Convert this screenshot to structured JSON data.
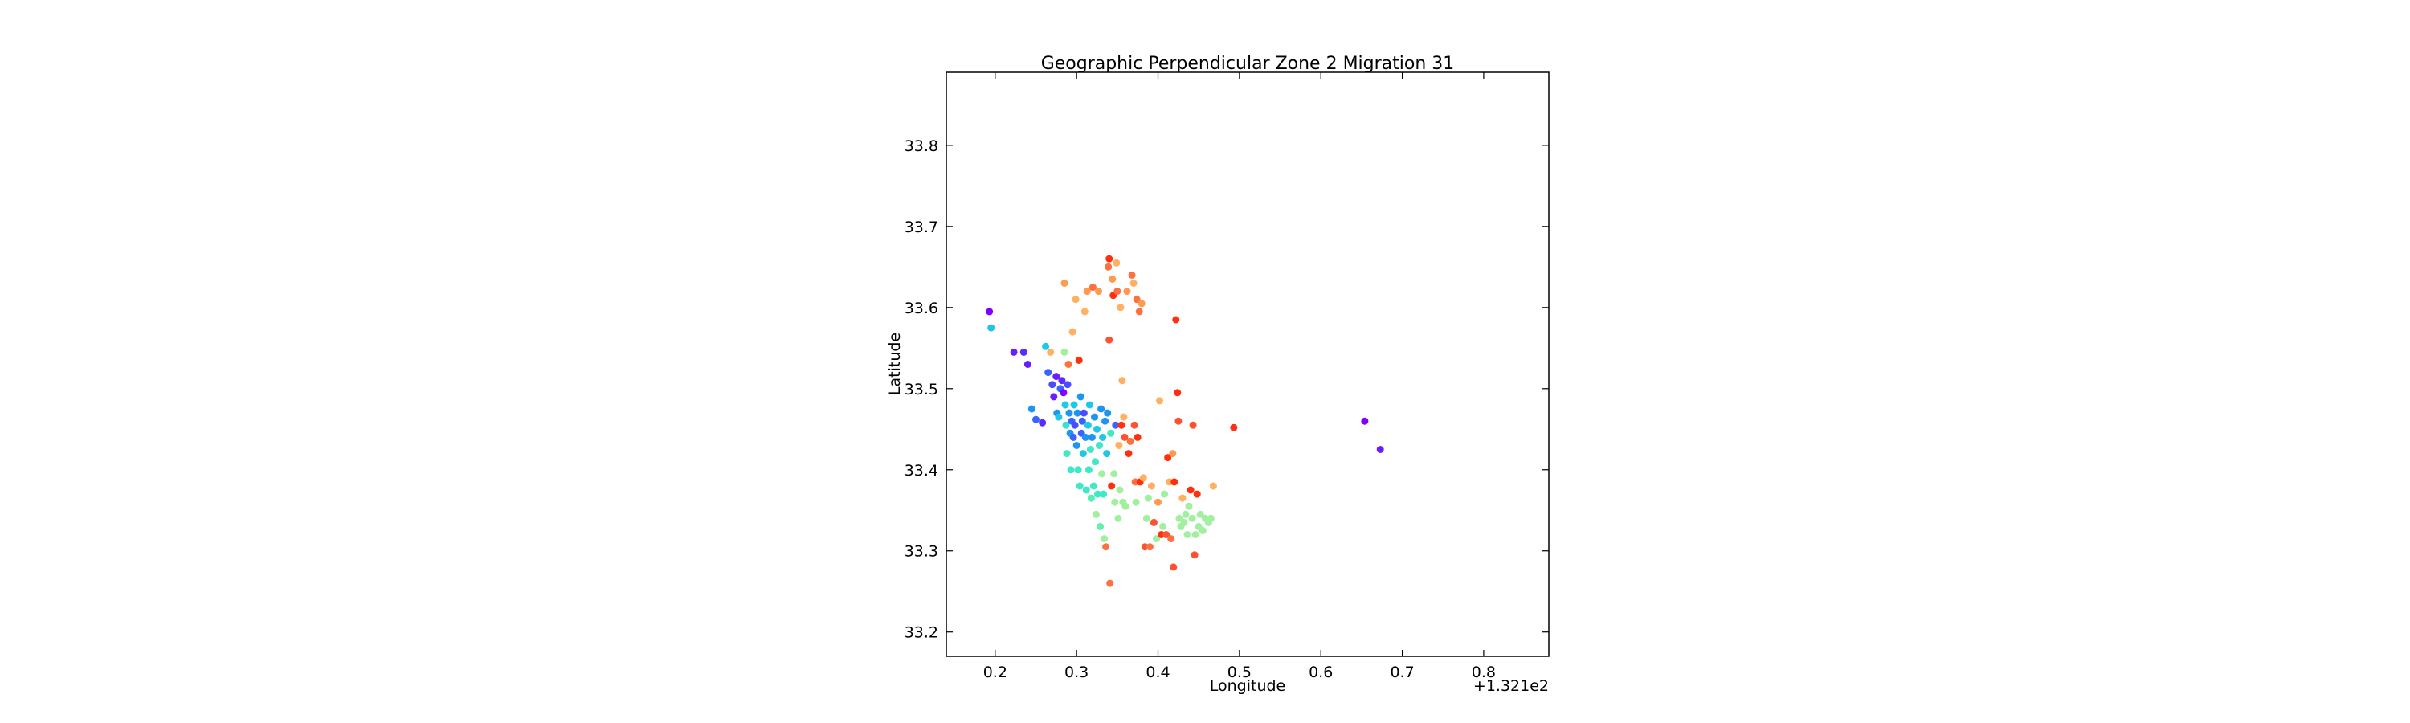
{
  "chart_data": {
    "type": "scatter",
    "title": "Geographic Perpendicular Zone 2 Migration 31",
    "xlabel": "Longitude",
    "ylabel": "Latitude",
    "x_offset_label": "+1.321e2",
    "xlim": [
      0.14,
      0.88
    ],
    "ylim": [
      33.17,
      33.89
    ],
    "xticks": [
      0.2,
      0.3,
      0.4,
      0.5,
      0.6,
      0.7,
      0.8
    ],
    "xtick_labels": [
      "0.2",
      "0.3",
      "0.4",
      "0.5",
      "0.6",
      "0.7",
      "0.8"
    ],
    "yticks": [
      33.2,
      33.3,
      33.4,
      33.5,
      33.6,
      33.7,
      33.8
    ],
    "ytick_labels": [
      "33.2",
      "33.3",
      "33.4",
      "33.5",
      "33.6",
      "33.7",
      "33.8"
    ],
    "grid": false,
    "legend": "none",
    "colormap": "rainbow",
    "points": [
      {
        "x": 0.193,
        "y": 33.595,
        "c": "#7f00ff"
      },
      {
        "x": 0.195,
        "y": 33.575,
        "c": "#1cc6e8"
      },
      {
        "x": 0.223,
        "y": 33.545,
        "c": "#6a1eff"
      },
      {
        "x": 0.235,
        "y": 33.545,
        "c": "#5a2cff"
      },
      {
        "x": 0.24,
        "y": 33.53,
        "c": "#6a1eff"
      },
      {
        "x": 0.245,
        "y": 33.475,
        "c": "#1e96f0"
      },
      {
        "x": 0.25,
        "y": 33.462,
        "c": "#3a64ff"
      },
      {
        "x": 0.258,
        "y": 33.458,
        "c": "#5a2cff"
      },
      {
        "x": 0.262,
        "y": 33.552,
        "c": "#1ec8e6"
      },
      {
        "x": 0.265,
        "y": 33.52,
        "c": "#3a64ff"
      },
      {
        "x": 0.268,
        "y": 33.545,
        "c": "#ffb060"
      },
      {
        "x": 0.27,
        "y": 33.505,
        "c": "#4a4cff"
      },
      {
        "x": 0.272,
        "y": 33.49,
        "c": "#6a1eff"
      },
      {
        "x": 0.275,
        "y": 33.515,
        "c": "#6a1eff"
      },
      {
        "x": 0.276,
        "y": 33.47,
        "c": "#1e96f0"
      },
      {
        "x": 0.278,
        "y": 33.465,
        "c": "#1ec8e6"
      },
      {
        "x": 0.28,
        "y": 33.5,
        "c": "#3a64ff"
      },
      {
        "x": 0.282,
        "y": 33.51,
        "c": "#5a2cff"
      },
      {
        "x": 0.284,
        "y": 33.495,
        "c": "#7f00ff"
      },
      {
        "x": 0.285,
        "y": 33.545,
        "c": "#a0f0a0"
      },
      {
        "x": 0.285,
        "y": 33.63,
        "c": "#ff9a50"
      },
      {
        "x": 0.286,
        "y": 33.48,
        "c": "#1ec8e6"
      },
      {
        "x": 0.287,
        "y": 33.455,
        "c": "#3ae0d0"
      },
      {
        "x": 0.288,
        "y": 33.42,
        "c": "#40e8c8"
      },
      {
        "x": 0.289,
        "y": 33.505,
        "c": "#4a4cff"
      },
      {
        "x": 0.29,
        "y": 33.53,
        "c": "#ff7040"
      },
      {
        "x": 0.291,
        "y": 33.47,
        "c": "#1e96f0"
      },
      {
        "x": 0.292,
        "y": 33.445,
        "c": "#1e96f0"
      },
      {
        "x": 0.293,
        "y": 33.4,
        "c": "#40e8c8"
      },
      {
        "x": 0.294,
        "y": 33.46,
        "c": "#3a64ff"
      },
      {
        "x": 0.295,
        "y": 33.57,
        "c": "#ffb060"
      },
      {
        "x": 0.296,
        "y": 33.44,
        "c": "#3a64ff"
      },
      {
        "x": 0.297,
        "y": 33.48,
        "c": "#1ec8e6"
      },
      {
        "x": 0.298,
        "y": 33.455,
        "c": "#4a4cff"
      },
      {
        "x": 0.299,
        "y": 33.61,
        "c": "#ffb060"
      },
      {
        "x": 0.3,
        "y": 33.43,
        "c": "#1e96f0"
      },
      {
        "x": 0.301,
        "y": 33.47,
        "c": "#1e96f0"
      },
      {
        "x": 0.302,
        "y": 33.4,
        "c": "#40e8c8"
      },
      {
        "x": 0.303,
        "y": 33.535,
        "c": "#ff3010"
      },
      {
        "x": 0.304,
        "y": 33.38,
        "c": "#40e8c8"
      },
      {
        "x": 0.305,
        "y": 33.49,
        "c": "#1e96f0"
      },
      {
        "x": 0.306,
        "y": 33.445,
        "c": "#3a64ff"
      },
      {
        "x": 0.307,
        "y": 33.46,
        "c": "#3a64ff"
      },
      {
        "x": 0.308,
        "y": 33.42,
        "c": "#1ec8e6"
      },
      {
        "x": 0.309,
        "y": 33.47,
        "c": "#4a4cff"
      },
      {
        "x": 0.31,
        "y": 33.595,
        "c": "#ffb060"
      },
      {
        "x": 0.311,
        "y": 33.44,
        "c": "#1e96f0"
      },
      {
        "x": 0.312,
        "y": 33.375,
        "c": "#40e8c8"
      },
      {
        "x": 0.313,
        "y": 33.62,
        "c": "#ff9a50"
      },
      {
        "x": 0.314,
        "y": 33.455,
        "c": "#1ec8e6"
      },
      {
        "x": 0.315,
        "y": 33.4,
        "c": "#40e8c8"
      },
      {
        "x": 0.316,
        "y": 33.48,
        "c": "#1ec8e6"
      },
      {
        "x": 0.317,
        "y": 33.425,
        "c": "#40e8c8"
      },
      {
        "x": 0.318,
        "y": 33.365,
        "c": "#50f0b8"
      },
      {
        "x": 0.319,
        "y": 33.44,
        "c": "#1e96f0"
      },
      {
        "x": 0.32,
        "y": 33.625,
        "c": "#ff7040"
      },
      {
        "x": 0.321,
        "y": 33.38,
        "c": "#40e8c8"
      },
      {
        "x": 0.322,
        "y": 33.465,
        "c": "#1e96f0"
      },
      {
        "x": 0.323,
        "y": 33.41,
        "c": "#40e8c8"
      },
      {
        "x": 0.324,
        "y": 33.345,
        "c": "#a0f0a0"
      },
      {
        "x": 0.325,
        "y": 33.45,
        "c": "#1ec8e6"
      },
      {
        "x": 0.326,
        "y": 33.37,
        "c": "#40e8c8"
      },
      {
        "x": 0.327,
        "y": 33.62,
        "c": "#ff9a50"
      },
      {
        "x": 0.328,
        "y": 33.43,
        "c": "#40e8c8"
      },
      {
        "x": 0.329,
        "y": 33.33,
        "c": "#60f0b0"
      },
      {
        "x": 0.33,
        "y": 33.475,
        "c": "#1e96f0"
      },
      {
        "x": 0.331,
        "y": 33.395,
        "c": "#a0f0a0"
      },
      {
        "x": 0.332,
        "y": 33.44,
        "c": "#1ec8e6"
      },
      {
        "x": 0.333,
        "y": 33.37,
        "c": "#40e8c8"
      },
      {
        "x": 0.334,
        "y": 33.315,
        "c": "#a0f0a0"
      },
      {
        "x": 0.335,
        "y": 33.46,
        "c": "#1e96f0"
      },
      {
        "x": 0.336,
        "y": 33.305,
        "c": "#ff7040"
      },
      {
        "x": 0.337,
        "y": 33.42,
        "c": "#1ec8e6"
      },
      {
        "x": 0.338,
        "y": 33.47,
        "c": "#1e96f0"
      },
      {
        "x": 0.339,
        "y": 33.65,
        "c": "#ff7040"
      },
      {
        "x": 0.34,
        "y": 33.66,
        "c": "#ff3010"
      },
      {
        "x": 0.34,
        "y": 33.56,
        "c": "#ff5030"
      },
      {
        "x": 0.341,
        "y": 33.26,
        "c": "#ff7040"
      },
      {
        "x": 0.342,
        "y": 33.445,
        "c": "#40e8c8"
      },
      {
        "x": 0.343,
        "y": 33.38,
        "c": "#ff3010"
      },
      {
        "x": 0.344,
        "y": 33.635,
        "c": "#ff9a50"
      },
      {
        "x": 0.345,
        "y": 33.615,
        "c": "#ff3010"
      },
      {
        "x": 0.346,
        "y": 33.395,
        "c": "#a0f0a0"
      },
      {
        "x": 0.347,
        "y": 33.36,
        "c": "#a0f0a0"
      },
      {
        "x": 0.348,
        "y": 33.455,
        "c": "#3a64ff"
      },
      {
        "x": 0.349,
        "y": 33.655,
        "c": "#ffb060"
      },
      {
        "x": 0.35,
        "y": 33.62,
        "c": "#ff7040"
      },
      {
        "x": 0.351,
        "y": 33.34,
        "c": "#a0f0a0"
      },
      {
        "x": 0.352,
        "y": 33.43,
        "c": "#ffb060"
      },
      {
        "x": 0.353,
        "y": 33.375,
        "c": "#a0f0a0"
      },
      {
        "x": 0.354,
        "y": 33.6,
        "c": "#ffb060"
      },
      {
        "x": 0.355,
        "y": 33.455,
        "c": "#ff3010"
      },
      {
        "x": 0.356,
        "y": 33.51,
        "c": "#ffb060"
      },
      {
        "x": 0.357,
        "y": 33.36,
        "c": "#a0f0a0"
      },
      {
        "x": 0.358,
        "y": 33.465,
        "c": "#ffb060"
      },
      {
        "x": 0.359,
        "y": 33.44,
        "c": "#ff5030"
      },
      {
        "x": 0.36,
        "y": 33.355,
        "c": "#a0f0a0"
      },
      {
        "x": 0.362,
        "y": 33.62,
        "c": "#ff9a50"
      },
      {
        "x": 0.364,
        "y": 33.42,
        "c": "#ff3010"
      },
      {
        "x": 0.366,
        "y": 33.435,
        "c": "#ff7040"
      },
      {
        "x": 0.368,
        "y": 33.64,
        "c": "#ff7040"
      },
      {
        "x": 0.37,
        "y": 33.63,
        "c": "#ffb060"
      },
      {
        "x": 0.371,
        "y": 33.455,
        "c": "#ff5030"
      },
      {
        "x": 0.372,
        "y": 33.385,
        "c": "#ff7040"
      },
      {
        "x": 0.373,
        "y": 33.36,
        "c": "#a0f0a0"
      },
      {
        "x": 0.374,
        "y": 33.61,
        "c": "#ff7040"
      },
      {
        "x": 0.375,
        "y": 33.44,
        "c": "#ff3010"
      },
      {
        "x": 0.377,
        "y": 33.595,
        "c": "#ff7040"
      },
      {
        "x": 0.378,
        "y": 33.385,
        "c": "#ff3010"
      },
      {
        "x": 0.38,
        "y": 33.605,
        "c": "#ff9a50"
      },
      {
        "x": 0.382,
        "y": 33.39,
        "c": "#ffb060"
      },
      {
        "x": 0.384,
        "y": 33.305,
        "c": "#ff5030"
      },
      {
        "x": 0.386,
        "y": 33.34,
        "c": "#a0f0a0"
      },
      {
        "x": 0.388,
        "y": 33.365,
        "c": "#a0f0a0"
      },
      {
        "x": 0.39,
        "y": 33.305,
        "c": "#ff7040"
      },
      {
        "x": 0.392,
        "y": 33.38,
        "c": "#ffb060"
      },
      {
        "x": 0.395,
        "y": 33.335,
        "c": "#ff5030"
      },
      {
        "x": 0.398,
        "y": 33.315,
        "c": "#a0f0a0"
      },
      {
        "x": 0.4,
        "y": 33.36,
        "c": "#ff9a50"
      },
      {
        "x": 0.402,
        "y": 33.485,
        "c": "#ffb060"
      },
      {
        "x": 0.404,
        "y": 33.32,
        "c": "#ff3010"
      },
      {
        "x": 0.406,
        "y": 33.33,
        "c": "#a0f0a0"
      },
      {
        "x": 0.408,
        "y": 33.37,
        "c": "#a0f0a0"
      },
      {
        "x": 0.41,
        "y": 33.32,
        "c": "#ff5030"
      },
      {
        "x": 0.412,
        "y": 33.415,
        "c": "#ff3010"
      },
      {
        "x": 0.414,
        "y": 33.385,
        "c": "#ffb060"
      },
      {
        "x": 0.416,
        "y": 33.315,
        "c": "#ff7040"
      },
      {
        "x": 0.418,
        "y": 33.42,
        "c": "#ff9a50"
      },
      {
        "x": 0.419,
        "y": 33.28,
        "c": "#ff5030"
      },
      {
        "x": 0.42,
        "y": 33.385,
        "c": "#ff3010"
      },
      {
        "x": 0.422,
        "y": 33.585,
        "c": "#ff3010"
      },
      {
        "x": 0.424,
        "y": 33.495,
        "c": "#ff3010"
      },
      {
        "x": 0.425,
        "y": 33.46,
        "c": "#ff5030"
      },
      {
        "x": 0.426,
        "y": 33.34,
        "c": "#a0f0a0"
      },
      {
        "x": 0.428,
        "y": 33.33,
        "c": "#a0f0a0"
      },
      {
        "x": 0.43,
        "y": 33.365,
        "c": "#ffb060"
      },
      {
        "x": 0.432,
        "y": 33.335,
        "c": "#a0f0a0"
      },
      {
        "x": 0.434,
        "y": 33.345,
        "c": "#a0f0a0"
      },
      {
        "x": 0.436,
        "y": 33.32,
        "c": "#a0f0a0"
      },
      {
        "x": 0.438,
        "y": 33.355,
        "c": "#a0f0a0"
      },
      {
        "x": 0.44,
        "y": 33.375,
        "c": "#ff3010"
      },
      {
        "x": 0.442,
        "y": 33.34,
        "c": "#a0f0a0"
      },
      {
        "x": 0.443,
        "y": 33.455,
        "c": "#ff5030"
      },
      {
        "x": 0.445,
        "y": 33.295,
        "c": "#ff5030"
      },
      {
        "x": 0.446,
        "y": 33.32,
        "c": "#a0f0a0"
      },
      {
        "x": 0.448,
        "y": 33.37,
        "c": "#ff3010"
      },
      {
        "x": 0.45,
        "y": 33.33,
        "c": "#a0f0a0"
      },
      {
        "x": 0.452,
        "y": 33.345,
        "c": "#a0f0a0"
      },
      {
        "x": 0.455,
        "y": 33.325,
        "c": "#a0f0a0"
      },
      {
        "x": 0.458,
        "y": 33.34,
        "c": "#a0f0a0"
      },
      {
        "x": 0.462,
        "y": 33.335,
        "c": "#a0f0a0"
      },
      {
        "x": 0.465,
        "y": 33.34,
        "c": "#a0f0a0"
      },
      {
        "x": 0.468,
        "y": 33.38,
        "c": "#ffb060"
      },
      {
        "x": 0.493,
        "y": 33.452,
        "c": "#ff3010"
      },
      {
        "x": 0.654,
        "y": 33.46,
        "c": "#7f00ff"
      },
      {
        "x": 0.673,
        "y": 33.425,
        "c": "#6a1eff"
      }
    ]
  }
}
